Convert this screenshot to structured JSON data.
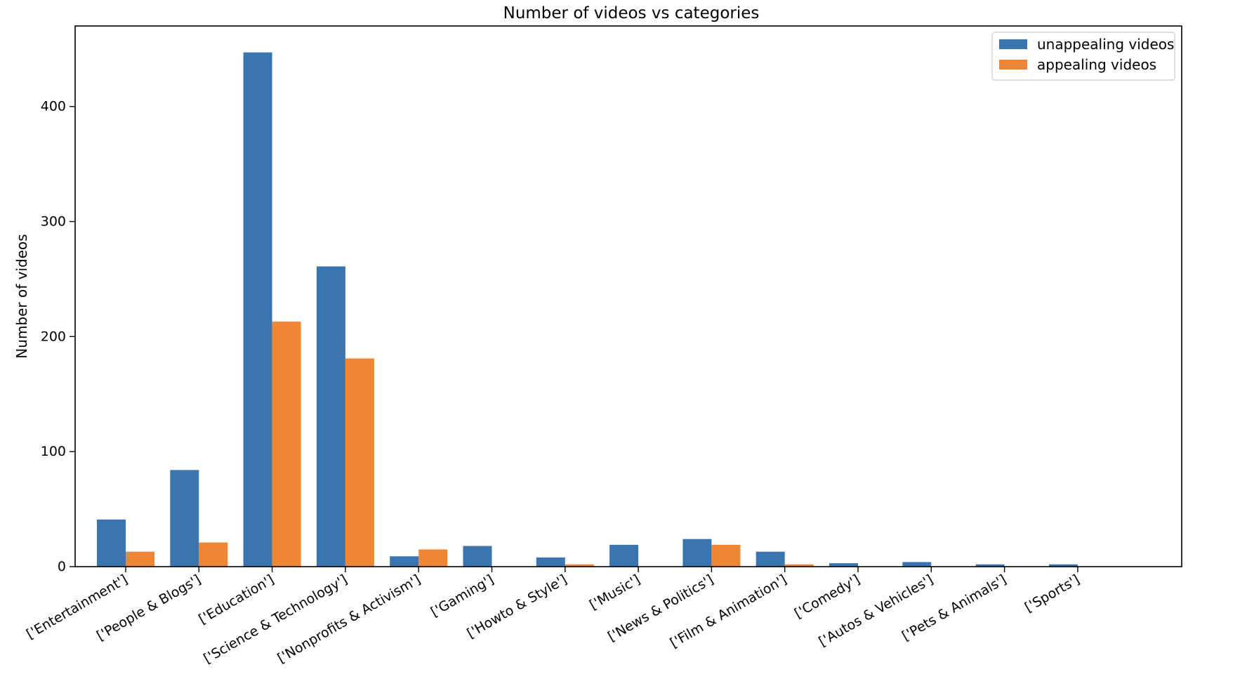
{
  "chart_data": {
    "type": "bar",
    "title": "Number of videos vs categories",
    "xlabel": "",
    "ylabel": "Number of videos",
    "categories": [
      "['Entertainment']",
      "['People & Blogs']",
      "['Education']",
      "['Science & Technology']",
      "['Nonprofits & Activism']",
      "['Gaming']",
      "['Howto & Style']",
      "['Music']",
      "['News & Politics']",
      "['Film & Animation']",
      "['Comedy']",
      "['Autos & Vehicles']",
      "['Pets & Animals']",
      "['Sports']"
    ],
    "series": [
      {
        "name": "unappealing videos",
        "color": "#3a75b0",
        "values": [
          41,
          84,
          447,
          261,
          9,
          18,
          8,
          19,
          24,
          13,
          3,
          4,
          2,
          2
        ]
      },
      {
        "name": "appealing videos",
        "color": "#ef8636",
        "values": [
          13,
          21,
          213,
          181,
          15,
          0,
          2,
          0,
          19,
          2,
          0,
          0,
          0,
          0
        ]
      }
    ],
    "ylim": [
      0,
      470
    ],
    "yticks": [
      0,
      100,
      200,
      300,
      400
    ],
    "grid": false,
    "legend_position": "upper right"
  }
}
